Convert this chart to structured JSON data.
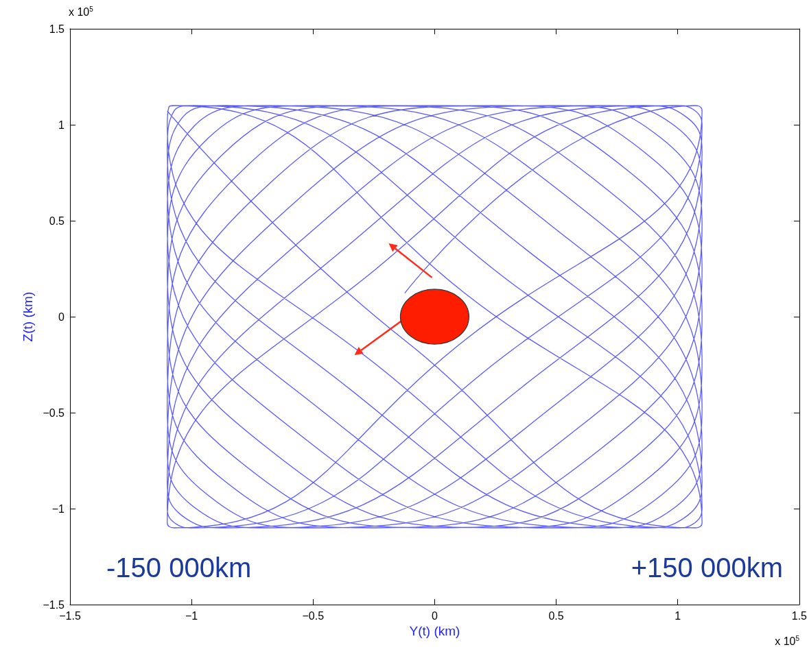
{
  "chart_data": {
    "type": "line",
    "xlabel": "Y(t) (km)",
    "ylabel": "Z(t) (km)",
    "color": "#5a5aff",
    "marker": "none",
    "xlim": [
      -1.5,
      1.5
    ],
    "ylim": [
      -1.5,
      1.5
    ],
    "xticks": [
      {
        "value": -1.5,
        "label": "−1.5"
      },
      {
        "value": -1,
        "label": "−1"
      },
      {
        "value": -0.5,
        "label": "−0.5"
      },
      0,
      0.5,
      1,
      1.5
    ],
    "yticks": [
      {
        "value": -1.5,
        "label": "−1.5"
      },
      {
        "value": -1,
        "label": "−1"
      },
      {
        "value": -0.5,
        "label": "−0.5"
      },
      0,
      0.5,
      1,
      1.5
    ],
    "annotations": [
      "-150 000km",
      "+150 000km",
      "x 10$^{5}$",
      "x 10$^{5}$"
    ],
    "x": [
      -0.123,
      1.072,
      1.093,
      1.1,
      0.123,
      -1.072,
      -1.093,
      -1.1,
      -0.245,
      0.991,
      1.072,
      1.1,
      0.245,
      -0.991,
      -1.072,
      -1.1,
      -0.363,
      0.86,
      1.038,
      1.1,
      0.363,
      -0.86,
      -1.038,
      -1.1,
      -0.477,
      0.686,
      0.991,
      1.1,
      0.477,
      -0.686,
      -0.991,
      -1.1,
      -0.585,
      0.477,
      0.931,
      1.1,
      0.585,
      -0.477,
      -0.931,
      -1.1,
      -0.686,
      0.245,
      0.86,
      1.1,
      0.686,
      -0.245,
      -0.86,
      -1.1,
      -0.778,
      0,
      0.778,
      1.1,
      0.778,
      0,
      -0.778,
      -1.1,
      -0.86,
      -0.245,
      0.686,
      1.1,
      0.86,
      0.245,
      -0.686,
      -1.1,
      -0.931,
      -0.477,
      0.585,
      1.1,
      0.931,
      0.477,
      -0.585,
      -1.1,
      -0.991,
      -0.686,
      0.477,
      1.1,
      0.991,
      0.686,
      -0.477,
      -1.1,
      -1.038,
      -0.86,
      0.363,
      1.1,
      1.038,
      0.86,
      -0.363,
      -1.1,
      -1.072,
      -0.991,
      0.245,
      1.1,
      1.072,
      0.991,
      -0.245,
      -1.1,
      -1.093,
      -1.072,
      0.123,
      1.1,
      1.093,
      1.072,
      -0.123,
      -1.1
    ],
    "values": [
      0.123,
      1.1,
      1.093,
      1.072,
      -0.123,
      -1.1,
      -1.093,
      -1.072,
      0.245,
      1.1,
      1.072,
      0.991,
      -0.245,
      -1.1,
      -1.072,
      -0.991,
      0.363,
      1.1,
      1.038,
      0.86,
      -0.363,
      -1.1,
      -1.038,
      -0.86,
      0.477,
      1.1,
      0.991,
      0.686,
      -0.477,
      -1.1,
      -0.991,
      -0.686,
      0.585,
      1.1,
      0.931,
      0.477,
      -0.585,
      -1.1,
      -0.931,
      -0.477,
      0.686,
      1.1,
      0.86,
      0.245,
      -0.686,
      -1.1,
      -0.86,
      -0.245,
      0.778,
      1.1,
      0.778,
      0,
      -0.778,
      -1.1,
      -0.778,
      0,
      0.86,
      1.1,
      0.686,
      -0.245,
      -0.86,
      -1.1,
      -0.686,
      0.245,
      0.931,
      1.1,
      0.585,
      -0.477,
      -0.931,
      -1.1,
      -0.585,
      0.477,
      0.991,
      1.1,
      0.477,
      -0.686,
      -0.991,
      -1.1,
      -0.477,
      0.686,
      1.038,
      1.1,
      0.363,
      -0.86,
      -1.038,
      -1.1,
      -0.363,
      0.86,
      1.072,
      1.1,
      0.245,
      -0.991,
      -1.072,
      -1.1,
      -0.245,
      0.991,
      1.093,
      1.1,
      0.123,
      -1.072,
      -1.093,
      -1.1,
      -0.123,
      1.072
    ]
  }
}
